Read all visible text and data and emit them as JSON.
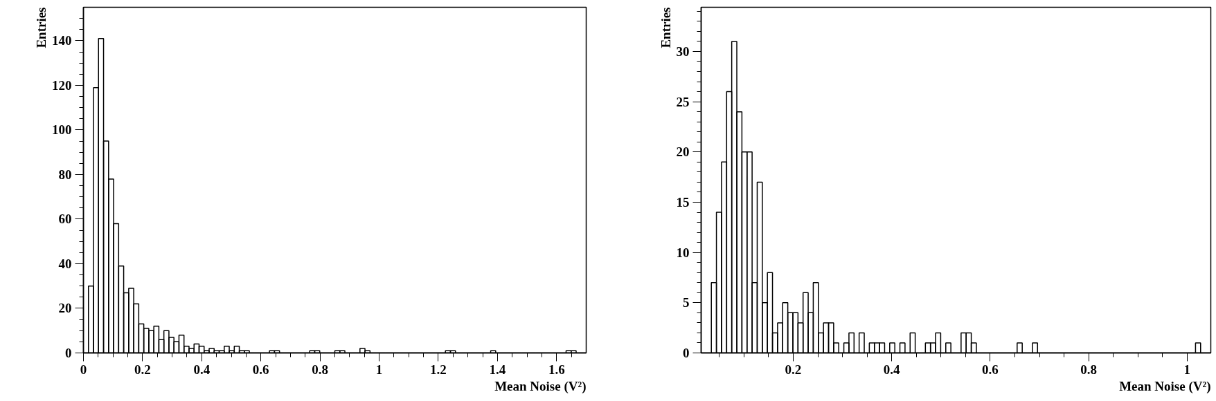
{
  "chart_data": [
    {
      "type": "histogram",
      "xlabel": "Mean Noise (V²)",
      "ylabel": "Entries",
      "color": "#000000",
      "grid": false,
      "bins": [
        0,
        0.017,
        0.034,
        0.051,
        0.068,
        0.085,
        0.102,
        0.119,
        0.136,
        0.153,
        0.17,
        0.187,
        0.204,
        0.221,
        0.238,
        0.255,
        0.272,
        0.289,
        0.306,
        0.323,
        0.34,
        0.357,
        0.374,
        0.391,
        0.408,
        0.425,
        0.442,
        0.459,
        0.476,
        0.493,
        0.51,
        0.527,
        0.544,
        0.561,
        0.578,
        0.595,
        0.612,
        0.629,
        0.646,
        0.663,
        0.68,
        0.697,
        0.714,
        0.731,
        0.748,
        0.765,
        0.782,
        0.799,
        0.816,
        0.833,
        0.85,
        0.867,
        0.884,
        0.901,
        0.918,
        0.935,
        0.952,
        0.969,
        0.986,
        1.003,
        1.02,
        1.037,
        1.054,
        1.071,
        1.088,
        1.105,
        1.122,
        1.139,
        1.156,
        1.173,
        1.19,
        1.207,
        1.224,
        1.241,
        1.258,
        1.275,
        1.292,
        1.309,
        1.326,
        1.343,
        1.36,
        1.377,
        1.394,
        1.411,
        1.428,
        1.445,
        1.462,
        1.479,
        1.496,
        1.513,
        1.53,
        1.547,
        1.564,
        1.581,
        1.598,
        1.615,
        1.632,
        1.649,
        1.666,
        1.683,
        1.7
      ],
      "values": [
        0,
        30,
        119,
        141,
        95,
        78,
        58,
        39,
        27,
        29,
        22,
        13,
        11,
        10,
        12,
        6,
        10,
        7,
        5,
        8,
        3,
        2,
        4,
        3,
        1,
        2,
        1,
        1,
        3,
        1,
        3,
        1,
        1,
        0,
        0,
        0,
        0,
        1,
        1,
        0,
        0,
        0,
        0,
        0,
        0,
        1,
        1,
        0,
        0,
        0,
        1,
        1,
        0,
        0,
        0,
        2,
        1,
        0,
        0,
        0,
        0,
        0,
        0,
        0,
        0,
        0,
        0,
        0,
        0,
        0,
        0,
        0,
        1,
        1,
        0,
        0,
        0,
        0,
        0,
        0,
        0,
        1,
        0,
        0,
        0,
        0,
        0,
        0,
        0,
        0,
        0,
        0,
        0,
        0,
        0,
        0,
        1,
        1,
        0,
        0
      ],
      "xlim": [
        0,
        1.7
      ],
      "ylim": [
        0,
        155
      ],
      "xticks": [
        0,
        {
          "value": 0.05,
          "label": null
        },
        {
          "value": 0.1,
          "label": null
        },
        {
          "value": 0.15,
          "label": null
        },
        {
          "value": 0.2,
          "label": "0.2"
        },
        {
          "value": 0.25,
          "label": null
        },
        {
          "value": 0.3,
          "label": null
        },
        {
          "value": 0.35,
          "label": null
        },
        {
          "value": 0.4,
          "label": "0.4"
        },
        {
          "value": 0.45,
          "label": null
        },
        {
          "value": 0.5,
          "label": null
        },
        {
          "value": 0.55,
          "label": null
        },
        {
          "value": 0.6,
          "label": "0.6"
        },
        {
          "value": 0.65,
          "label": null
        },
        {
          "value": 0.7,
          "label": null
        },
        {
          "value": 0.75,
          "label": null
        },
        {
          "value": 0.8,
          "label": "0.8"
        },
        {
          "value": 0.85,
          "label": null
        },
        {
          "value": 0.9,
          "label": null
        },
        {
          "value": 0.95,
          "label": null
        },
        1,
        {
          "value": 1.05,
          "label": null
        },
        {
          "value": 1.1,
          "label": null
        },
        {
          "value": 1.15,
          "label": null
        },
        {
          "value": 1.2,
          "label": "1.2"
        },
        {
          "value": 1.25,
          "label": null
        },
        {
          "value": 1.3,
          "label": null
        },
        {
          "value": 1.35,
          "label": null
        },
        {
          "value": 1.4,
          "label": "1.4"
        },
        {
          "value": 1.45,
          "label": null
        },
        {
          "value": 1.5,
          "label": null
        },
        {
          "value": 1.55,
          "label": null
        },
        {
          "value": 1.6,
          "label": "1.6"
        },
        {
          "value": 1.65,
          "label": null
        }
      ],
      "yticks": [
        0,
        {
          "value": 5,
          "label": null
        },
        {
          "value": 10,
          "label": null
        },
        {
          "value": 15,
          "label": null
        },
        20,
        {
          "value": 25,
          "label": null
        },
        {
          "value": 30,
          "label": null
        },
        {
          "value": 35,
          "label": null
        },
        40,
        {
          "value": 45,
          "label": null
        },
        {
          "value": 50,
          "label": null
        },
        {
          "value": 55,
          "label": null
        },
        60,
        {
          "value": 65,
          "label": null
        },
        {
          "value": 70,
          "label": null
        },
        {
          "value": 75,
          "label": null
        },
        80,
        {
          "value": 85,
          "label": null
        },
        {
          "value": 90,
          "label": null
        },
        {
          "value": 95,
          "label": null
        },
        100,
        {
          "value": 105,
          "label": null
        },
        {
          "value": 110,
          "label": null
        },
        {
          "value": 115,
          "label": null
        },
        120,
        {
          "value": 125,
          "label": null
        },
        {
          "value": 130,
          "label": null
        },
        {
          "value": 135,
          "label": null
        },
        140,
        {
          "value": 145,
          "label": null
        },
        {
          "value": 150,
          "label": null
        }
      ]
    },
    {
      "type": "histogram",
      "xlabel": "Mean Noise (V²)",
      "ylabel": "Entries",
      "color": "#000000",
      "grid": false,
      "bins": [
        0.013,
        0.02335,
        0.0337,
        0.04405,
        0.0544,
        0.06475,
        0.0751,
        0.08545,
        0.0958,
        0.10615,
        0.1165,
        0.12685,
        0.1372,
        0.14755,
        0.1579,
        0.16825,
        0.1786,
        0.18895,
        0.1993,
        0.20965,
        0.22,
        0.23035,
        0.2407,
        0.25105,
        0.2614,
        0.27175,
        0.2821,
        0.29245,
        0.3028,
        0.31315,
        0.3235,
        0.33385,
        0.3442,
        0.35455,
        0.3649,
        0.37525,
        0.3856,
        0.39595,
        0.4063,
        0.41665,
        0.427,
        0.43735,
        0.4477,
        0.45805,
        0.4684,
        0.47875,
        0.4891,
        0.49945,
        0.5098,
        0.52015,
        0.5305,
        0.54085,
        0.5512,
        0.56155,
        0.5719,
        0.58225,
        0.5926,
        0.60295,
        0.6133,
        0.62365,
        0.634,
        0.64435,
        0.6547,
        0.66505,
        0.6754,
        0.68575,
        0.6961,
        0.70645,
        0.7168,
        0.72715,
        0.7375,
        0.74785,
        0.7582,
        0.76855,
        0.7789,
        0.78925,
        0.7996,
        0.80995,
        0.8203,
        0.83065,
        0.841,
        0.85135,
        0.8617,
        0.87205,
        0.8824,
        0.89275,
        0.9031,
        0.91345,
        0.9238,
        0.93415,
        0.9445,
        0.95485,
        0.9652,
        0.97555,
        0.9859,
        0.99625,
        1.0066,
        1.01695,
        1.0273,
        1.03765,
        1.048
      ],
      "values": [
        0,
        0,
        7,
        14,
        19,
        26,
        31,
        24,
        20,
        20,
        7,
        17,
        5,
        8,
        2,
        3,
        5,
        4,
        4,
        3,
        6,
        4,
        7,
        2,
        3,
        3,
        1,
        0,
        1,
        2,
        0,
        2,
        0,
        1,
        1,
        1,
        0,
        1,
        0,
        1,
        0,
        2,
        0,
        0,
        1,
        1,
        2,
        0,
        1,
        0,
        0,
        2,
        2,
        1,
        0,
        0,
        0,
        0,
        0,
        0,
        0,
        0,
        1,
        0,
        0,
        1,
        0,
        0,
        0,
        0,
        0,
        0,
        0,
        0,
        0,
        0,
        0,
        0,
        0,
        0,
        0,
        0,
        0,
        0,
        0,
        0,
        0,
        0,
        0,
        0,
        0,
        0,
        0,
        0,
        0,
        0,
        0,
        1,
        0,
        0
      ],
      "xlim": [
        0.013,
        1.048
      ],
      "ylim": [
        0,
        34.4
      ],
      "xticks": [
        {
          "value": 0.05,
          "label": null
        },
        {
          "value": 0.1,
          "label": null
        },
        {
          "value": 0.15,
          "label": null
        },
        {
          "value": 0.2,
          "label": "0.2"
        },
        {
          "value": 0.25,
          "label": null
        },
        {
          "value": 0.3,
          "label": null
        },
        {
          "value": 0.35,
          "label": null
        },
        {
          "value": 0.4,
          "label": "0.4"
        },
        {
          "value": 0.45,
          "label": null
        },
        {
          "value": 0.5,
          "label": null
        },
        {
          "value": 0.55,
          "label": null
        },
        {
          "value": 0.6,
          "label": "0.6"
        },
        {
          "value": 0.65,
          "label": null
        },
        {
          "value": 0.7,
          "label": null
        },
        {
          "value": 0.75,
          "label": null
        },
        {
          "value": 0.8,
          "label": "0.8"
        },
        {
          "value": 0.85,
          "label": null
        },
        {
          "value": 0.9,
          "label": null
        },
        {
          "value": 0.95,
          "label": null
        },
        1
      ],
      "yticks": [
        0,
        {
          "value": 1,
          "label": null
        },
        {
          "value": 2,
          "label": null
        },
        {
          "value": 3,
          "label": null
        },
        {
          "value": 4,
          "label": null
        },
        5,
        {
          "value": 6,
          "label": null
        },
        {
          "value": 7,
          "label": null
        },
        {
          "value": 8,
          "label": null
        },
        {
          "value": 9,
          "label": null
        },
        10,
        {
          "value": 11,
          "label": null
        },
        {
          "value": 12,
          "label": null
        },
        {
          "value": 13,
          "label": null
        },
        {
          "value": 14,
          "label": null
        },
        15,
        {
          "value": 16,
          "label": null
        },
        {
          "value": 17,
          "label": null
        },
        {
          "value": 18,
          "label": null
        },
        {
          "value": 19,
          "label": null
        },
        20,
        {
          "value": 21,
          "label": null
        },
        {
          "value": 22,
          "label": null
        },
        {
          "value": 23,
          "label": null
        },
        {
          "value": 24,
          "label": null
        },
        25,
        {
          "value": 26,
          "label": null
        },
        {
          "value": 27,
          "label": null
        },
        {
          "value": 28,
          "label": null
        },
        {
          "value": 29,
          "label": null
        },
        30,
        {
          "value": 31,
          "label": null
        },
        {
          "value": 32,
          "label": null
        },
        {
          "value": 33,
          "label": null
        },
        {
          "value": 34,
          "label": null
        }
      ]
    }
  ]
}
